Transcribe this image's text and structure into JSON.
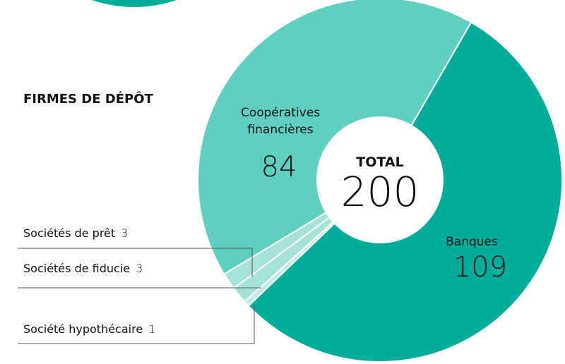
{
  "chart_data": {
    "type": "donut",
    "title": "FIRMES DE DÉPÔT",
    "center_label": "TOTAL",
    "total": 200,
    "categories": [
      "Banques",
      "Société hypothécaire",
      "Sociétés de fiducie",
      "Sociétés de prêt",
      "Coopératives financières"
    ],
    "values": [
      109,
      1,
      3,
      3,
      84
    ],
    "colors": [
      "#00ad9a",
      "#c4ece6",
      "#a6e2da",
      "#a6e2da",
      "#5ecfc0"
    ]
  }
}
